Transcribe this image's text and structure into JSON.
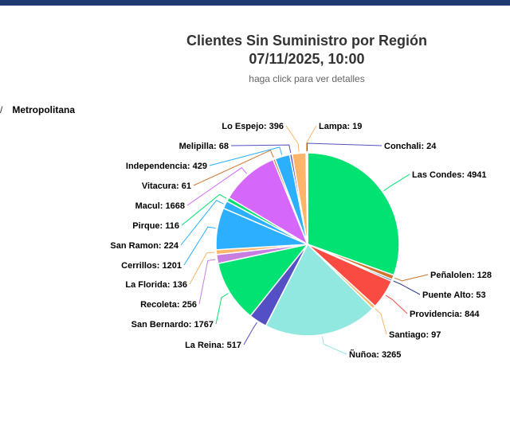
{
  "header": {
    "title_line1": "Clientes Sin Suministro por Región",
    "title_line2": "07/11/2025, 10:00",
    "subtitle": "haga click para ver detalles"
  },
  "breadcrumb": {
    "separator": "/",
    "current": "Metropolitana"
  },
  "chart_data": {
    "type": "pie",
    "title": "Clientes Sin Suministro por Región",
    "subtitle": "07/11/2025, 10:00",
    "slices": [
      {
        "name": "Las Condes",
        "value": 4941,
        "color": "#00e272"
      },
      {
        "name": "Peñalolen",
        "value": 128,
        "color": "#d0752f"
      },
      {
        "name": "Puente Alto",
        "value": 53,
        "color": "#2f3f8f"
      },
      {
        "name": "Providencia",
        "value": 844,
        "color": "#fa4b42"
      },
      {
        "name": "Santiago",
        "value": 97,
        "color": "#feb56a"
      },
      {
        "name": "Ñuñoa",
        "value": 3265,
        "color": "#91e8e1"
      },
      {
        "name": "La Reina",
        "value": 517,
        "color": "#544fc5"
      },
      {
        "name": "San Bernardo",
        "value": 1767,
        "color": "#00e272"
      },
      {
        "name": "Recoleta",
        "value": 256,
        "color": "#c77ee0"
      },
      {
        "name": "La Florida",
        "value": 136,
        "color": "#feb56a"
      },
      {
        "name": "Cerrillos",
        "value": 1201,
        "color": "#2caffe"
      },
      {
        "name": "San Ramon",
        "value": 224,
        "color": "#2caffe"
      },
      {
        "name": "Pirque",
        "value": 116,
        "color": "#00e272"
      },
      {
        "name": "Macul",
        "value": 1668,
        "color": "#d568fb"
      },
      {
        "name": "Vitacura",
        "value": 61,
        "color": "#d0752f"
      },
      {
        "name": "Independencia",
        "value": 429,
        "color": "#2caffe"
      },
      {
        "name": "Melipilla",
        "value": 68,
        "color": "#544fc5"
      },
      {
        "name": "Lo Espejo",
        "value": 396,
        "color": "#feb56a"
      },
      {
        "name": "Lampa",
        "value": 19,
        "color": "#feb56a"
      },
      {
        "name": "Conchali",
        "value": 24,
        "color": "#544fc5"
      }
    ]
  }
}
